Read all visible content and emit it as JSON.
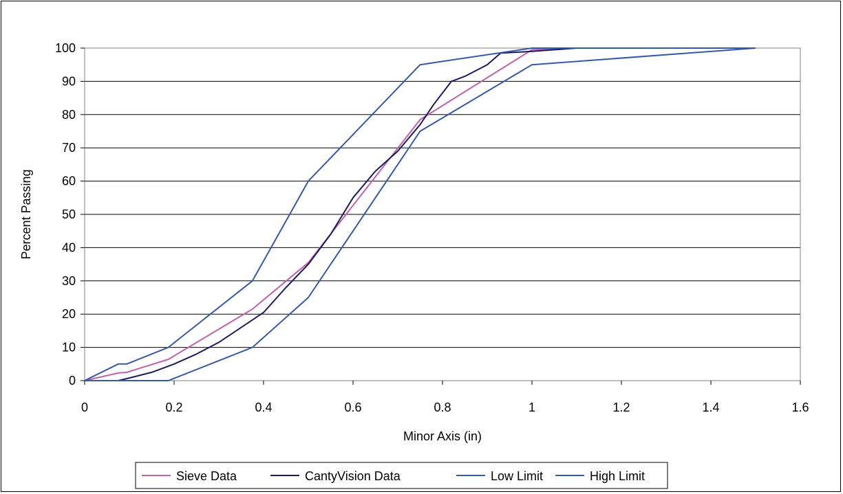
{
  "chart_data": {
    "type": "line",
    "title": "",
    "xlabel": "Minor Axis (in)",
    "ylabel": "Percent Passing",
    "xlim": [
      0,
      1.6
    ],
    "ylim": [
      0,
      100
    ],
    "x_ticks": [
      "0",
      "0.2",
      "0.4",
      "0.6",
      "0.8",
      "1",
      "1.2",
      "1.4",
      "1.6"
    ],
    "y_ticks": [
      "0",
      "10",
      "20",
      "30",
      "40",
      "50",
      "60",
      "70",
      "80",
      "90",
      "100"
    ],
    "grid": "horizontal",
    "legend_position": "bottom",
    "series": [
      {
        "name": "Sieve Data",
        "color": "#c060a8",
        "points": [
          [
            0,
            0
          ],
          [
            0.075,
            2.3
          ],
          [
            0.094,
            2.5
          ],
          [
            0.187,
            6.4
          ],
          [
            0.375,
            21.5
          ],
          [
            0.5,
            35.5
          ],
          [
            0.75,
            78.5
          ],
          [
            1.0,
            99.5
          ],
          [
            1.1,
            100
          ],
          [
            1.5,
            100
          ]
        ]
      },
      {
        "name": "CantyVision Data",
        "color": "#1a1a5e",
        "points": [
          [
            0.075,
            0
          ],
          [
            0.1,
            0.8
          ],
          [
            0.15,
            2.5
          ],
          [
            0.2,
            5
          ],
          [
            0.25,
            8
          ],
          [
            0.3,
            11.5
          ],
          [
            0.35,
            16
          ],
          [
            0.4,
            20.5
          ],
          [
            0.45,
            28
          ],
          [
            0.5,
            35
          ],
          [
            0.55,
            44
          ],
          [
            0.6,
            55
          ],
          [
            0.65,
            63
          ],
          [
            0.7,
            69
          ],
          [
            0.75,
            77
          ],
          [
            0.78,
            83
          ],
          [
            0.82,
            90
          ],
          [
            0.85,
            91.5
          ],
          [
            0.9,
            95
          ],
          [
            0.93,
            98.5
          ],
          [
            1.0,
            99
          ],
          [
            1.05,
            99.5
          ],
          [
            1.1,
            100
          ],
          [
            1.5,
            100
          ]
        ]
      },
      {
        "name": "Low Limit",
        "color": "#3458a8",
        "points": [
          [
            0,
            0
          ],
          [
            0.187,
            0
          ],
          [
            0.375,
            10
          ],
          [
            0.5,
            25
          ],
          [
            0.75,
            75
          ],
          [
            1.0,
            95
          ],
          [
            1.5,
            100
          ]
        ]
      },
      {
        "name": "High Limit",
        "color": "#3458a8",
        "points": [
          [
            0,
            0
          ],
          [
            0.075,
            5
          ],
          [
            0.094,
            5
          ],
          [
            0.187,
            10
          ],
          [
            0.375,
            30
          ],
          [
            0.5,
            60
          ],
          [
            0.75,
            95
          ],
          [
            1.0,
            100
          ],
          [
            1.5,
            100
          ]
        ]
      }
    ]
  }
}
